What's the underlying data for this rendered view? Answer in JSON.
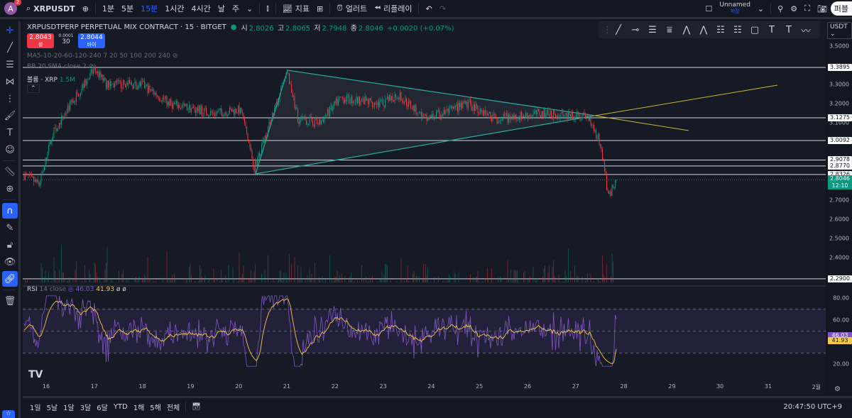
{
  "topbar": {
    "avatar": "A",
    "notifications": "2",
    "symbol": "XRPUSDT",
    "intervals": [
      "1분",
      "5분",
      "15분",
      "1시간",
      "4시간",
      "날",
      "주"
    ],
    "active_interval": "15분",
    "indicators": "지표",
    "alert": "얼러트",
    "replay": "리플레이",
    "layout_name": "Unnamed",
    "layout_status": "저장",
    "publish": "퍼블"
  },
  "legend": {
    "title": "XRPUSDTPERP PERPETUAL MIX CONTRACT · 15 · BITGET",
    "open_label": "시",
    "open": "2.8026",
    "high_label": "고",
    "high": "2.8065",
    "low_label": "저",
    "low": "2.7948",
    "close_label": "종",
    "close": "2.8046",
    "change": "+0.0020 (+0.07%)"
  },
  "order": {
    "sell_price": "2.8043",
    "sell_label": "셀",
    "spread": "0.0001",
    "qty": "30",
    "buy_price": "2.8044",
    "buy_label": "바이"
  },
  "indicators": {
    "ma": "MA5-10-20-60-120-240 7 20 50 100 200 240",
    "bb": "BB 20 SMA close 2",
    "volume_label": "볼륨 · XRP",
    "volume_value": "1.5M"
  },
  "rsi": {
    "label": "RSI",
    "params": "14 close",
    "value": "46.03",
    "ma_value": "41.93",
    "extra": "ø ø",
    "ticks": [
      "80.00",
      "60.00",
      "20.00"
    ]
  },
  "currency": "USDT",
  "price_axis": [
    "3.5000",
    "3.3000",
    "3.2000",
    "3.1000",
    "2.7000",
    "2.6000",
    "2.5000",
    "2.4000"
  ],
  "levels": [
    "3.3895",
    "3.1275",
    "3.0092",
    "2.9078",
    "2.8770",
    "2.8326",
    "2.2900"
  ],
  "current_price": {
    "price": "2.8046",
    "countdown": "12:10"
  },
  "time_axis": [
    "16",
    "17",
    "18",
    "19",
    "20",
    "21",
    "22",
    "23",
    "24",
    "25",
    "26",
    "27",
    "28",
    "29",
    "30",
    "31",
    "2월"
  ],
  "ranges": [
    "1일",
    "5날",
    "1달",
    "3달",
    "6달",
    "YTD",
    "1해",
    "5해",
    "전체"
  ],
  "clock": "20:47:50 UTC+9",
  "colors": {
    "up": "#089981",
    "down": "#f23645",
    "accent": "#2962ff",
    "triangle": "#26a69a",
    "projection": "#c9b735",
    "rsi": "#7e57c2",
    "rsi_ma": "#f7c948"
  }
}
